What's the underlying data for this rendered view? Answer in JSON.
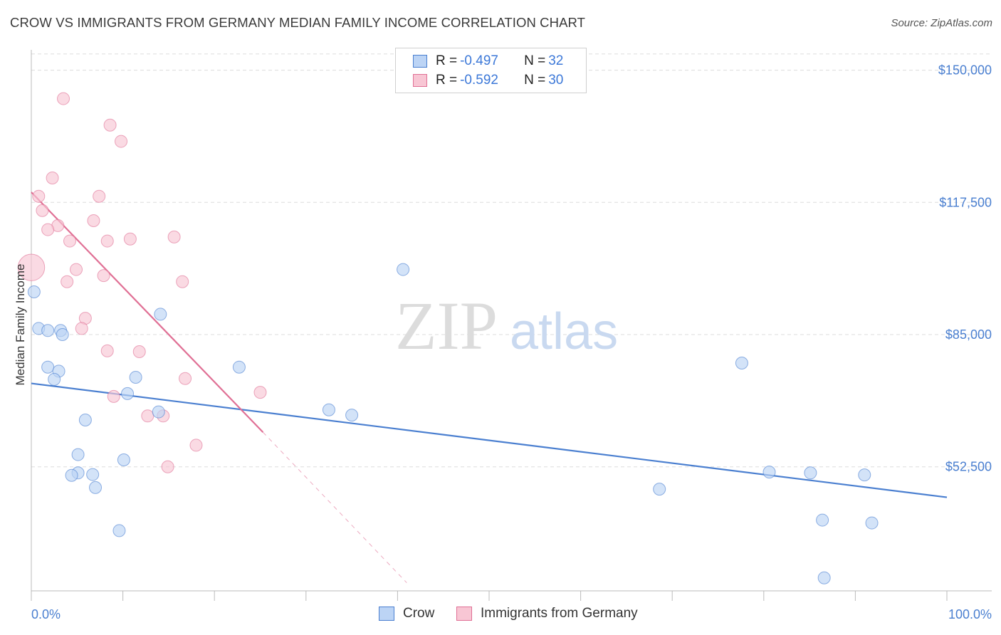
{
  "title": "CROW VS IMMIGRANTS FROM GERMANY MEDIAN FAMILY INCOME CORRELATION CHART",
  "source": "Source: ZipAtlas.com",
  "watermark": {
    "zip": "ZIP",
    "atlas": "atlas"
  },
  "colors": {
    "crow": "#4a7fd0",
    "crow_fill": "#bcd4f5",
    "germany": "#e07095",
    "germany_fill": "#f8c6d4",
    "grid": "#dddddd"
  },
  "legend": {
    "rows": [
      {
        "r_label": "R = ",
        "r_value": "-0.497",
        "n_label": "N = ",
        "n_value": "32"
      },
      {
        "r_label": "R = ",
        "r_value": "-0.592",
        "n_label": "N = ",
        "n_value": "30"
      }
    ]
  },
  "bottom_legend": {
    "crow": "Crow",
    "germany": "Immigrants from Germany"
  },
  "chart_data": {
    "type": "scatter",
    "title": "CROW VS IMMIGRANTS FROM GERMANY MEDIAN FAMILY INCOME CORRELATION CHART",
    "xlabel": "",
    "ylabel": "Median Family Income",
    "xlim": [
      0,
      100
    ],
    "ylim": [
      22000,
      155000
    ],
    "x_tick_labels": [
      "0.0%",
      "100.0%"
    ],
    "y_ticks": [
      52500,
      85000,
      117500,
      150000
    ],
    "y_tick_labels": [
      "$52,500",
      "$85,000",
      "$117,500",
      "$150,000"
    ],
    "series": [
      {
        "name": "Crow",
        "points": [
          [
            0.3,
            95500
          ],
          [
            0.8,
            86500
          ],
          [
            1.8,
            86000
          ],
          [
            3.2,
            86000
          ],
          [
            3.4,
            85000
          ],
          [
            1.8,
            77000
          ],
          [
            3.0,
            76000
          ],
          [
            2.5,
            74000
          ],
          [
            14.1,
            90000
          ],
          [
            11.4,
            74500
          ],
          [
            10.5,
            70500
          ],
          [
            13.9,
            66000
          ],
          [
            5.9,
            64000
          ],
          [
            5.1,
            55500
          ],
          [
            10.1,
            54200
          ],
          [
            5.1,
            51000
          ],
          [
            4.4,
            50400
          ],
          [
            6.7,
            50600
          ],
          [
            7.0,
            47400
          ],
          [
            9.6,
            36800
          ],
          [
            22.7,
            77000
          ],
          [
            40.6,
            101000
          ],
          [
            32.5,
            66500
          ],
          [
            35.0,
            65200
          ],
          [
            77.6,
            78000
          ],
          [
            80.6,
            51200
          ],
          [
            91.0,
            50500
          ],
          [
            85.1,
            51000
          ],
          [
            68.6,
            47000
          ],
          [
            86.4,
            39400
          ],
          [
            91.8,
            38700
          ],
          [
            86.6,
            25200
          ]
        ],
        "sizes": [
          1,
          1,
          1,
          1,
          1,
          1,
          1,
          1,
          1,
          1,
          1,
          1,
          1,
          1,
          1,
          1,
          1,
          1,
          1,
          1,
          1,
          1,
          1,
          1,
          1,
          1,
          1,
          1,
          1,
          1,
          1,
          1
        ]
      },
      {
        "name": "Immigrants from Germany",
        "points": [
          [
            0.0,
            101500
          ],
          [
            3.5,
            143000
          ],
          [
            8.6,
            136500
          ],
          [
            9.8,
            132500
          ],
          [
            2.3,
            123500
          ],
          [
            0.8,
            119000
          ],
          [
            7.4,
            119000
          ],
          [
            1.2,
            115500
          ],
          [
            6.8,
            113000
          ],
          [
            2.9,
            111800
          ],
          [
            1.8,
            110800
          ],
          [
            15.6,
            109000
          ],
          [
            10.8,
            108500
          ],
          [
            4.2,
            108000
          ],
          [
            8.3,
            108000
          ],
          [
            4.9,
            101000
          ],
          [
            7.9,
            99500
          ],
          [
            3.9,
            98000
          ],
          [
            16.5,
            98000
          ],
          [
            5.9,
            89000
          ],
          [
            5.5,
            86500
          ],
          [
            8.3,
            81000
          ],
          [
            11.8,
            80800
          ],
          [
            16.8,
            74200
          ],
          [
            25.0,
            70800
          ],
          [
            9.0,
            69800
          ],
          [
            12.7,
            65000
          ],
          [
            14.4,
            65000
          ],
          [
            18.0,
            57800
          ],
          [
            14.9,
            52500
          ]
        ],
        "sizes": [
          3,
          1,
          1,
          1,
          1,
          1,
          1,
          1,
          1,
          1,
          1,
          1,
          1,
          1,
          1,
          1,
          1,
          1,
          1,
          1,
          1,
          1,
          1,
          1,
          1,
          1,
          1,
          1,
          1,
          1
        ]
      }
    ],
    "trendlines": [
      {
        "series": "Crow",
        "from": [
          0,
          73000
        ],
        "to": [
          100,
          45000
        ],
        "style": "solid"
      },
      {
        "series": "Immigrants from Germany",
        "from": [
          0,
          120000
        ],
        "to": [
          25.3,
          61000
        ],
        "style": "solid"
      },
      {
        "series": "Immigrants from Germany",
        "from": [
          25.3,
          61000
        ],
        "to": [
          41.0,
          24000
        ],
        "style": "dashed"
      }
    ],
    "grid": true
  }
}
